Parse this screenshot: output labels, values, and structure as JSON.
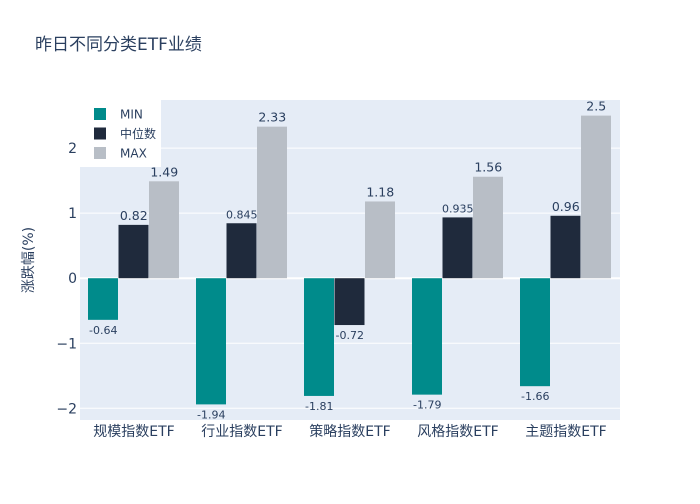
{
  "chart_data": {
    "type": "bar",
    "title": "昨日不同分类ETF业绩",
    "xlabel": "",
    "ylabel": "涨跌幅(%)",
    "ylim": [
      -2.18,
      2.74
    ],
    "yticks": [
      -2,
      -1,
      0,
      1,
      2
    ],
    "ytick_labels": [
      "−2",
      "−1",
      "0",
      "1",
      "2"
    ],
    "grid": true,
    "legend_position": "top-left",
    "categories": [
      "规模指数ETF",
      "行业指数ETF",
      "策略指数ETF",
      "风格指数ETF",
      "主题指数ETF"
    ],
    "series": [
      {
        "name": "MIN",
        "color": "#008b8b",
        "values": [
          -0.64,
          -1.94,
          -1.81,
          -1.79,
          -1.66
        ],
        "labels": [
          "-0.64",
          "-1.94",
          "-1.81",
          "-1.79",
          "-1.66"
        ]
      },
      {
        "name": "中位数",
        "color": "#1f2a3c",
        "values": [
          0.82,
          0.845,
          -0.72,
          0.935,
          0.96
        ],
        "labels": [
          "0.82",
          "0.845",
          "-0.72",
          "0.935",
          "0.96"
        ]
      },
      {
        "name": "MAX",
        "color": "#b8bec6",
        "values": [
          1.49,
          2.33,
          1.18,
          1.56,
          2.5
        ],
        "labels": [
          "1.49",
          "2.33",
          "1.18",
          "1.56",
          "2.5"
        ]
      }
    ]
  }
}
